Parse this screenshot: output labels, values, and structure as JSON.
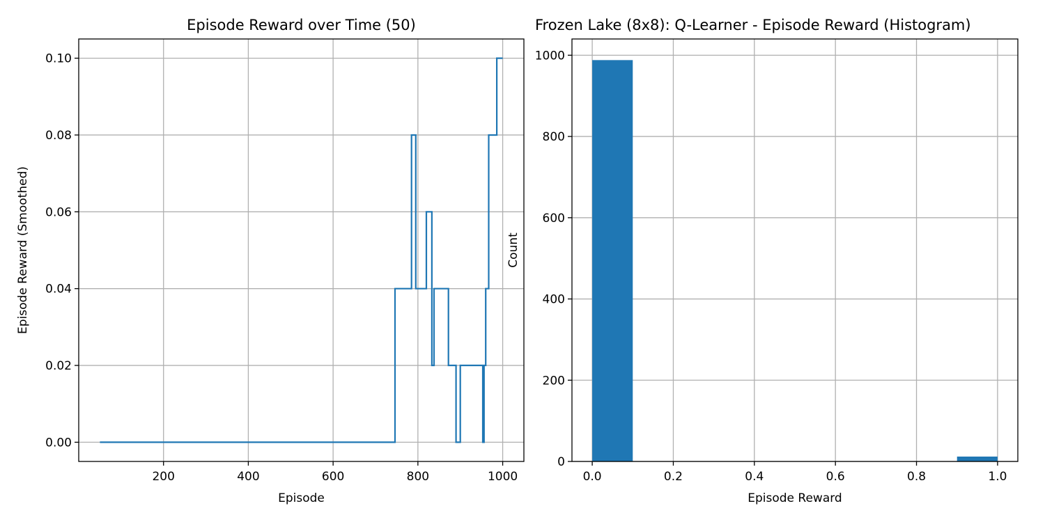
{
  "chart_data": [
    {
      "type": "line",
      "title": "Episode Reward over Time (50)",
      "xlabel": "Episode",
      "ylabel": "Episode Reward (Smoothed)",
      "xlim": [
        0,
        1050
      ],
      "ylim": [
        -0.005,
        0.105
      ],
      "xticks": [
        200,
        400,
        600,
        800,
        1000
      ],
      "yticks": [
        0.0,
        0.02,
        0.04,
        0.06,
        0.08,
        0.1
      ],
      "ytick_labels": [
        "0.00",
        "0.02",
        "0.04",
        "0.06",
        "0.08",
        "0.10"
      ],
      "grid": true,
      "color": "#1f77b4",
      "series": [
        {
          "step": true,
          "x": [
            50,
            746,
            785,
            795,
            820,
            833,
            838,
            843,
            872,
            890,
            900,
            953,
            956,
            960,
            967,
            986,
            1000
          ],
          "y": [
            0.0,
            0.04,
            0.08,
            0.04,
            0.06,
            0.02,
            0.04,
            0.04,
            0.02,
            0.0,
            0.02,
            0.0,
            0.02,
            0.04,
            0.08,
            0.1,
            0.1
          ]
        }
      ]
    },
    {
      "type": "bar",
      "title": "Frozen Lake (8x8): Q-Learner - Episode Reward (Histogram)",
      "xlabel": "Episode Reward",
      "ylabel": "Count",
      "xlim": [
        -0.05,
        1.05
      ],
      "ylim": [
        0,
        1040
      ],
      "xticks": [
        0.0,
        0.2,
        0.4,
        0.6,
        0.8,
        1.0
      ],
      "xtick_labels": [
        "0.0",
        "0.2",
        "0.4",
        "0.6",
        "0.8",
        "1.0"
      ],
      "yticks": [
        0,
        200,
        400,
        600,
        800,
        1000
      ],
      "grid": true,
      "color": "#1f77b4",
      "bins": [
        {
          "start": 0.0,
          "end": 0.1,
          "count": 988
        },
        {
          "start": 0.9,
          "end": 1.0,
          "count": 12
        }
      ]
    }
  ]
}
